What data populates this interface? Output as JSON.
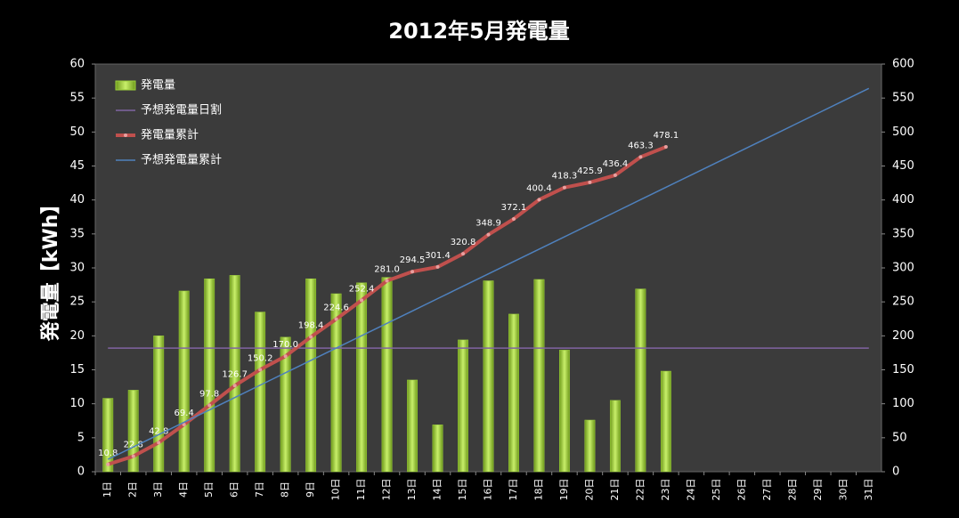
{
  "chart_data": {
    "type": "combo",
    "title": "2012年5月発電量",
    "y_label": "発電量【kWh】",
    "categories": [
      "1日",
      "2日",
      "3日",
      "4日",
      "5日",
      "6日",
      "7日",
      "8日",
      "9日",
      "10日",
      "11日",
      "12日",
      "13日",
      "14日",
      "15日",
      "16日",
      "17日",
      "18日",
      "19日",
      "20日",
      "21日",
      "22日",
      "23日",
      "24日",
      "25日",
      "26日",
      "27日",
      "28日",
      "29日",
      "30日",
      "31日"
    ],
    "ylim": [
      0,
      60
    ],
    "yticks": [
      0,
      5,
      10,
      15,
      20,
      25,
      30,
      35,
      40,
      45,
      50,
      55,
      60
    ],
    "y2lim": [
      0,
      600
    ],
    "y2ticks": [
      0,
      50,
      100,
      150,
      200,
      250,
      300,
      350,
      400,
      450,
      500,
      550,
      600
    ],
    "grid": false,
    "legend": "upper left",
    "series": [
      {
        "name": "発電量",
        "type": "bar",
        "color": "#9bcf3a",
        "values": [
          10.8,
          12.0,
          20.0,
          26.6,
          28.4,
          28.9,
          23.5,
          19.8,
          28.4,
          26.2,
          27.8,
          28.6,
          13.5,
          6.9,
          19.4,
          28.1,
          23.2,
          28.3,
          17.9,
          7.6,
          10.5,
          26.9,
          14.8,
          null,
          null,
          null,
          null,
          null,
          null,
          null,
          null
        ]
      },
      {
        "name": "予想発電量日割",
        "type": "line",
        "color": "#8064a2",
        "values": [
          18.2,
          18.2,
          18.2,
          18.2,
          18.2,
          18.2,
          18.2,
          18.2,
          18.2,
          18.2,
          18.2,
          18.2,
          18.2,
          18.2,
          18.2,
          18.2,
          18.2,
          18.2,
          18.2,
          18.2,
          18.2,
          18.2,
          18.2,
          18.2,
          18.2,
          18.2,
          18.2,
          18.2,
          18.2,
          18.2,
          18.2
        ]
      },
      {
        "name": "発電量累計",
        "type": "line",
        "axis": "y2",
        "color": "#c0504d",
        "markers": true,
        "values": [
          10.8,
          22.8,
          42.8,
          69.4,
          97.8,
          126.7,
          150.2,
          170.0,
          198.4,
          224.6,
          252.4,
          281.0,
          294.5,
          301.4,
          320.8,
          348.9,
          372.1,
          400.4,
          418.3,
          425.9,
          436.4,
          463.3,
          478.1,
          null,
          null,
          null,
          null,
          null,
          null,
          null,
          null
        ],
        "value_labels": [
          "10.8",
          "22.8",
          "42.8",
          "69.4",
          "97.8",
          "126.7",
          "150.2",
          "170.0",
          "198.4",
          "224.6",
          "252.4",
          "281.0",
          "294.5",
          "301.4",
          "320.8",
          "348.9",
          "372.1",
          "400.4",
          "418.3",
          "425.9",
          "436.4",
          "463.3",
          "478.1",
          null,
          null,
          null,
          null,
          null,
          null,
          null,
          null
        ]
      },
      {
        "name": "予想発電量累計",
        "type": "line",
        "axis": "y2",
        "color": "#4f81bd",
        "values": [
          18.2,
          36.4,
          54.6,
          72.8,
          91,
          109.2,
          127.4,
          145.6,
          163.8,
          182,
          200.2,
          218.4,
          236.6,
          254.8,
          273,
          291.2,
          309.4,
          327.6,
          345.8,
          364,
          382.2,
          400.4,
          418.6,
          436.8,
          455,
          473.2,
          491.4,
          509.6,
          527.8,
          546,
          564.2
        ]
      }
    ]
  }
}
